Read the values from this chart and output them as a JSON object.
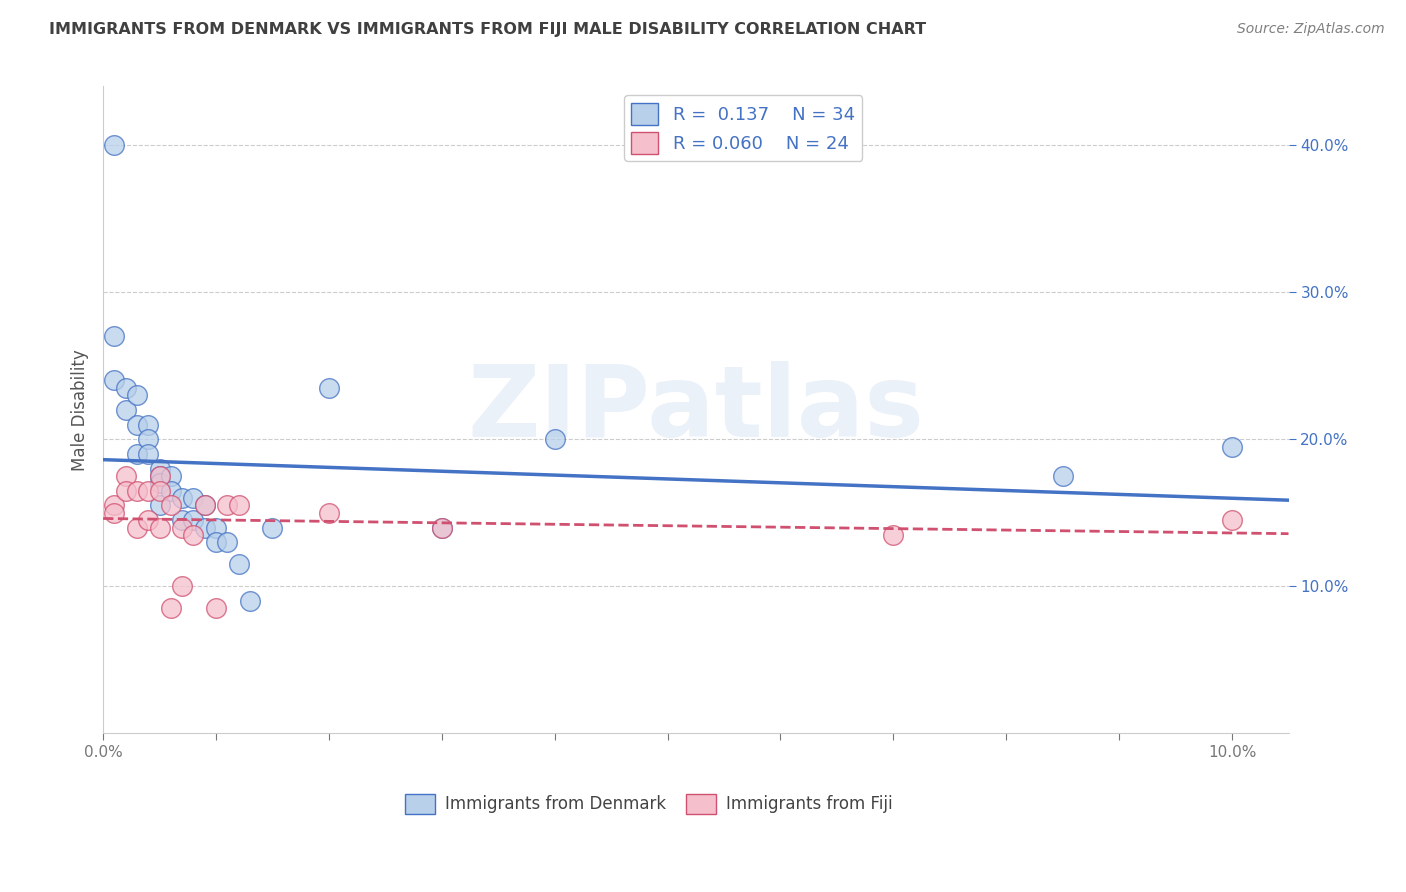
{
  "title": "IMMIGRANTS FROM DENMARK VS IMMIGRANTS FROM FIJI MALE DISABILITY CORRELATION CHART",
  "source": "Source: ZipAtlas.com",
  "ylabel": "Male Disability",
  "watermark": "ZIPatlas",
  "legend_denmark": {
    "R": "0.137",
    "N": "34",
    "color": "#b8d0ea"
  },
  "legend_fiji": {
    "R": "0.060",
    "N": "24",
    "color": "#f5c0cc"
  },
  "denmark_x": [
    0.001,
    0.001,
    0.001,
    0.002,
    0.002,
    0.003,
    0.003,
    0.003,
    0.004,
    0.004,
    0.004,
    0.005,
    0.005,
    0.005,
    0.005,
    0.006,
    0.006,
    0.007,
    0.007,
    0.008,
    0.008,
    0.009,
    0.009,
    0.01,
    0.01,
    0.011,
    0.012,
    0.013,
    0.015,
    0.02,
    0.03,
    0.04,
    0.085,
    0.1
  ],
  "denmark_y": [
    0.4,
    0.27,
    0.24,
    0.235,
    0.22,
    0.23,
    0.21,
    0.19,
    0.21,
    0.2,
    0.19,
    0.18,
    0.175,
    0.17,
    0.155,
    0.175,
    0.165,
    0.16,
    0.145,
    0.16,
    0.145,
    0.155,
    0.14,
    0.14,
    0.13,
    0.13,
    0.115,
    0.09,
    0.14,
    0.235,
    0.14,
    0.2,
    0.175,
    0.195
  ],
  "fiji_x": [
    0.001,
    0.001,
    0.002,
    0.002,
    0.003,
    0.003,
    0.004,
    0.004,
    0.005,
    0.005,
    0.005,
    0.006,
    0.006,
    0.007,
    0.007,
    0.008,
    0.009,
    0.01,
    0.011,
    0.012,
    0.02,
    0.03,
    0.07,
    0.1
  ],
  "fiji_y": [
    0.155,
    0.15,
    0.175,
    0.165,
    0.165,
    0.14,
    0.165,
    0.145,
    0.175,
    0.165,
    0.14,
    0.155,
    0.085,
    0.14,
    0.1,
    0.135,
    0.155,
    0.085,
    0.155,
    0.155,
    0.15,
    0.14,
    0.135,
    0.145
  ],
  "xlim": [
    0.0,
    0.105
  ],
  "ylim": [
    0.0,
    0.44
  ],
  "yticks": [
    0.1,
    0.2,
    0.3,
    0.4
  ],
  "xticks": [
    0.0,
    0.01,
    0.02,
    0.03,
    0.04,
    0.05,
    0.06,
    0.07,
    0.08,
    0.09,
    0.1
  ],
  "denmark_line_color": "#4472c4",
  "fiji_line_color": "#d05070",
  "fiji_line_color_dashed": "#e08898",
  "background_color": "#ffffff",
  "grid_color": "#cccccc",
  "title_color": "#404040",
  "source_color": "#808080",
  "scatter_size": 200,
  "scatter_alpha": 0.75
}
